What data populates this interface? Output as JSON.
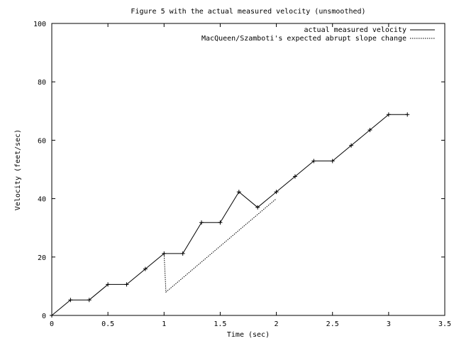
{
  "chart_data": {
    "type": "line",
    "title": "Figure 5 with the actual measured velocity (unsmoothed)",
    "xlabel": "Time (sec)",
    "ylabel": "Velocity (feet/sec)",
    "xlim": [
      0,
      3.5
    ],
    "ylim": [
      0,
      100
    ],
    "x_ticks": [
      0,
      0.5,
      1,
      1.5,
      2,
      2.5,
      3,
      3.5
    ],
    "x_tick_labels": [
      "0",
      "0.5",
      "1",
      "1.5",
      "2",
      "2.5",
      "3",
      "3.5"
    ],
    "y_ticks": [
      0,
      20,
      40,
      60,
      80,
      100
    ],
    "y_tick_labels": [
      "0",
      "20",
      "40",
      "60",
      "80",
      "100"
    ],
    "grid": false,
    "legend_position": "top-right",
    "series": [
      {
        "name": "actual measured velocity",
        "style": "solid",
        "markers": true,
        "x": [
          0,
          0.1667,
          0.3333,
          0.5,
          0.6667,
          0.8333,
          1.0,
          1.1667,
          1.3333,
          1.5,
          1.6667,
          1.8333,
          2.0,
          2.1667,
          2.3333,
          2.5,
          2.6667,
          2.8333,
          3.0,
          3.1667
        ],
        "y": [
          0,
          5.3,
          5.3,
          10.6,
          10.6,
          15.9,
          21.2,
          21.2,
          31.8,
          31.8,
          42.3,
          37.0,
          42.3,
          47.6,
          52.9,
          52.9,
          58.2,
          63.5,
          68.8,
          68.8
        ]
      },
      {
        "name": "MacQueen/Szamboti's expected abrupt slope change",
        "style": "dotted",
        "markers": false,
        "x": [
          1.0,
          1.0167,
          2.0
        ],
        "y": [
          21.2,
          8.0,
          40.0
        ]
      }
    ]
  }
}
